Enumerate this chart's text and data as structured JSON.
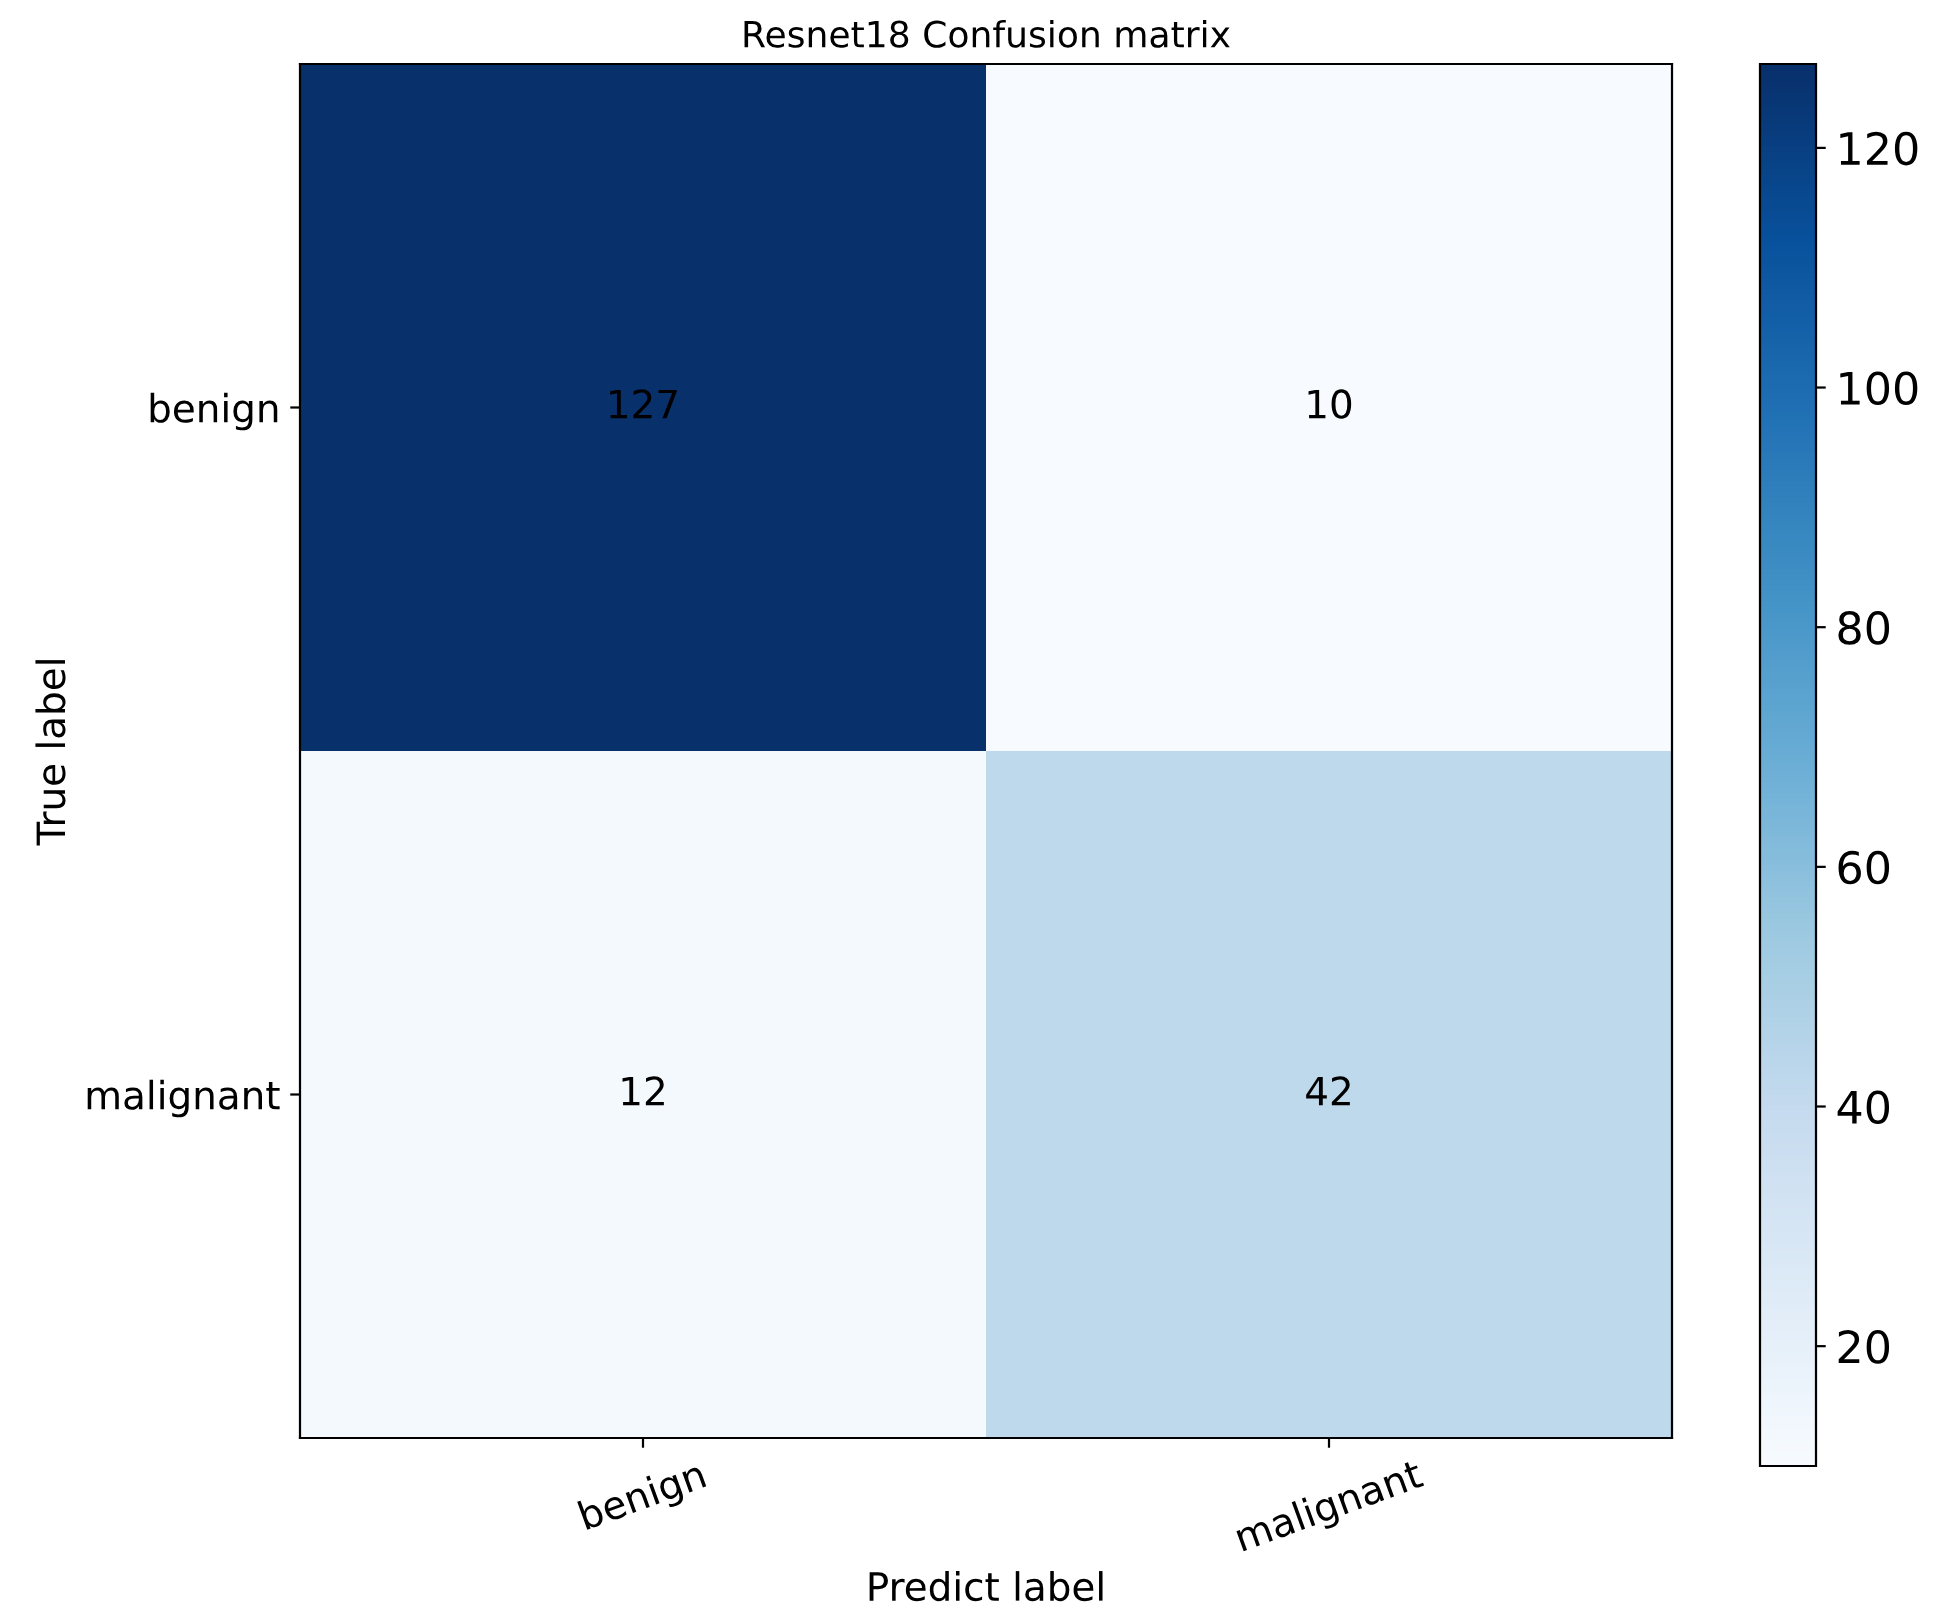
{
  "chart_data": {
    "type": "heatmap",
    "title": "Resnet18 Confusion matrix",
    "xlabel": "Predict label",
    "ylabel": "True label",
    "categories": [
      "benign",
      "malignant"
    ],
    "y_categories": [
      "benign",
      "malignant"
    ],
    "cells": [
      [
        127,
        10
      ],
      [
        12,
        42
      ]
    ],
    "data_labels": true,
    "clim": [
      10,
      127
    ],
    "cticks": [
      20,
      40,
      60,
      80,
      100,
      120
    ],
    "grid": false
  }
}
